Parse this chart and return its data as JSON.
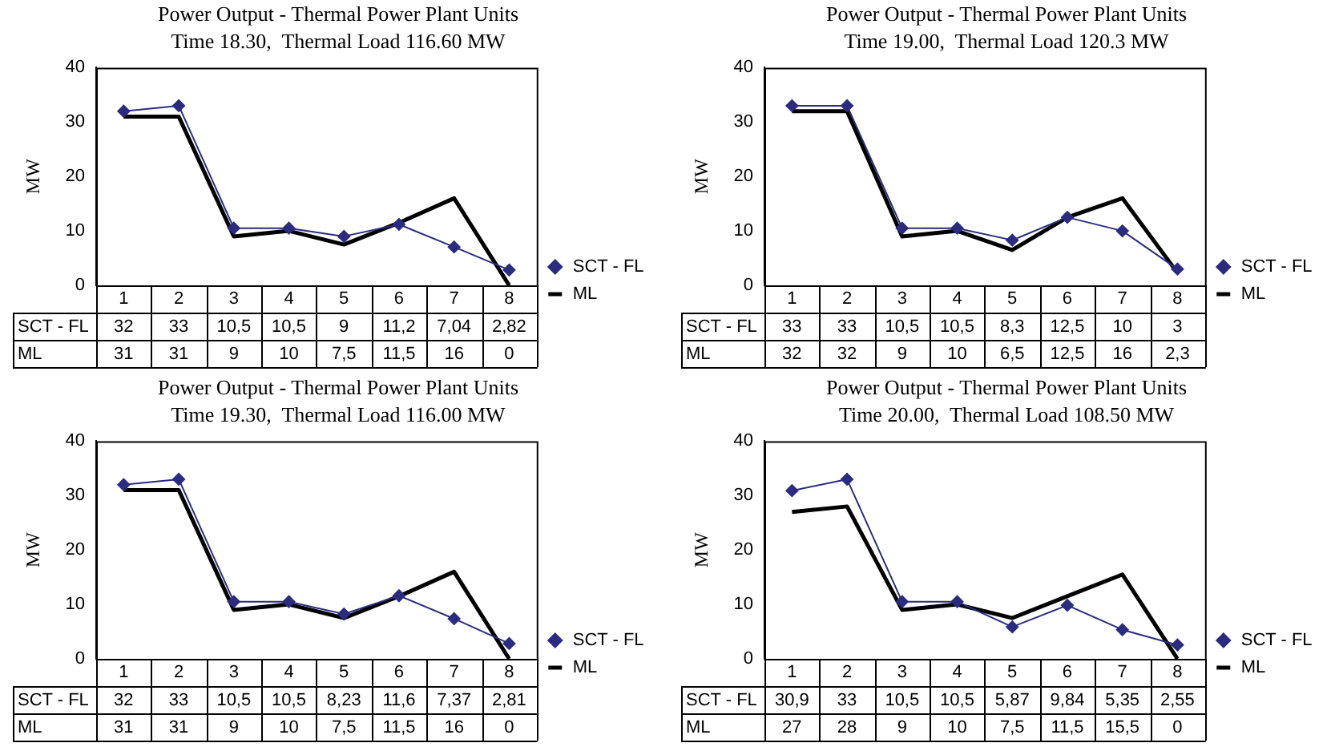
{
  "chart_data": [
    {
      "type": "line",
      "title": "Power Output - Thermal Power Plant Units",
      "subtitle": "Time 18.30,  Thermal Load 116.60 MW",
      "ylabel": "MW",
      "categories": [
        "1",
        "2",
        "3",
        "4",
        "5",
        "6",
        "7",
        "8"
      ],
      "ylim": [
        0,
        40
      ],
      "yticks": [
        0,
        10,
        20,
        30,
        40
      ],
      "legend": "right",
      "series": [
        {
          "name": "SCT - FL",
          "color": "#2b2b80",
          "marker": "diamond",
          "values": [
            32,
            33,
            10.5,
            10.5,
            9,
            11.2,
            7.04,
            2.82
          ],
          "value_labels": [
            "32",
            "33",
            "10,5",
            "10,5",
            "9",
            "11,2",
            "7,04",
            "2,82"
          ]
        },
        {
          "name": "ML",
          "color": "#000000",
          "marker": "none",
          "values": [
            31,
            31,
            9,
            10,
            7.5,
            11.5,
            16,
            0
          ],
          "value_labels": [
            "31",
            "31",
            "9",
            "10",
            "7,5",
            "11,5",
            "16",
            "0"
          ]
        }
      ]
    },
    {
      "type": "line",
      "title": "Power Output - Thermal Power Plant Units",
      "subtitle": "Time 19.00,  Thermal Load 120.3 MW",
      "ylabel": "MW",
      "categories": [
        "1",
        "2",
        "3",
        "4",
        "5",
        "6",
        "7",
        "8"
      ],
      "ylim": [
        0,
        40
      ],
      "yticks": [
        0,
        10,
        20,
        30,
        40
      ],
      "legend": "right",
      "series": [
        {
          "name": "SCT - FL",
          "color": "#2b2b80",
          "marker": "diamond",
          "values": [
            33,
            33,
            10.5,
            10.5,
            8.3,
            12.5,
            10,
            3
          ],
          "value_labels": [
            "33",
            "33",
            "10,5",
            "10,5",
            "8,3",
            "12,5",
            "10",
            "3"
          ]
        },
        {
          "name": "ML",
          "color": "#000000",
          "marker": "none",
          "values": [
            32,
            32,
            9,
            10,
            6.5,
            12.5,
            16,
            2.3
          ],
          "value_labels": [
            "32",
            "32",
            "9",
            "10",
            "6,5",
            "12,5",
            "16",
            "2,3"
          ]
        }
      ]
    },
    {
      "type": "line",
      "title": "Power Output - Thermal Power Plant Units",
      "subtitle": "Time 19.30,  Thermal Load 116.00 MW",
      "ylabel": "MW",
      "categories": [
        "1",
        "2",
        "3",
        "4",
        "5",
        "6",
        "7",
        "8"
      ],
      "ylim": [
        0,
        40
      ],
      "yticks": [
        0,
        10,
        20,
        30,
        40
      ],
      "legend": "right",
      "series": [
        {
          "name": "SCT - FL",
          "color": "#2b2b80",
          "marker": "diamond",
          "values": [
            32,
            33,
            10.5,
            10.5,
            8.23,
            11.6,
            7.37,
            2.81
          ],
          "value_labels": [
            "32",
            "33",
            "10,5",
            "10,5",
            "8,23",
            "11,6",
            "7,37",
            "2,81"
          ]
        },
        {
          "name": "ML",
          "color": "#000000",
          "marker": "none",
          "values": [
            31,
            31,
            9,
            10,
            7.5,
            11.5,
            16,
            0
          ],
          "value_labels": [
            "31",
            "31",
            "9",
            "10",
            "7,5",
            "11,5",
            "16",
            "0"
          ]
        }
      ]
    },
    {
      "type": "line",
      "title": "Power Output - Thermal Power Plant Units",
      "subtitle": "Time 20.00,  Thermal Load 108.50 MW",
      "ylabel": "MW",
      "categories": [
        "1",
        "2",
        "3",
        "4",
        "5",
        "6",
        "7",
        "8"
      ],
      "ylim": [
        0,
        40
      ],
      "yticks": [
        0,
        10,
        20,
        30,
        40
      ],
      "legend": "right",
      "series": [
        {
          "name": "SCT - FL",
          "color": "#2b2b80",
          "marker": "diamond",
          "values": [
            30.9,
            33,
            10.5,
            10.5,
            5.87,
            9.84,
            5.35,
            2.55
          ],
          "value_labels": [
            "30,9",
            "33",
            "10,5",
            "10,5",
            "5,87",
            "9,84",
            "5,35",
            "2,55"
          ]
        },
        {
          "name": "ML",
          "color": "#000000",
          "marker": "none",
          "values": [
            27,
            28,
            9,
            10,
            7.5,
            11.5,
            15.5,
            0
          ],
          "value_labels": [
            "27",
            "28",
            "9",
            "10",
            "7,5",
            "11,5",
            "15,5",
            "0"
          ]
        }
      ]
    }
  ]
}
